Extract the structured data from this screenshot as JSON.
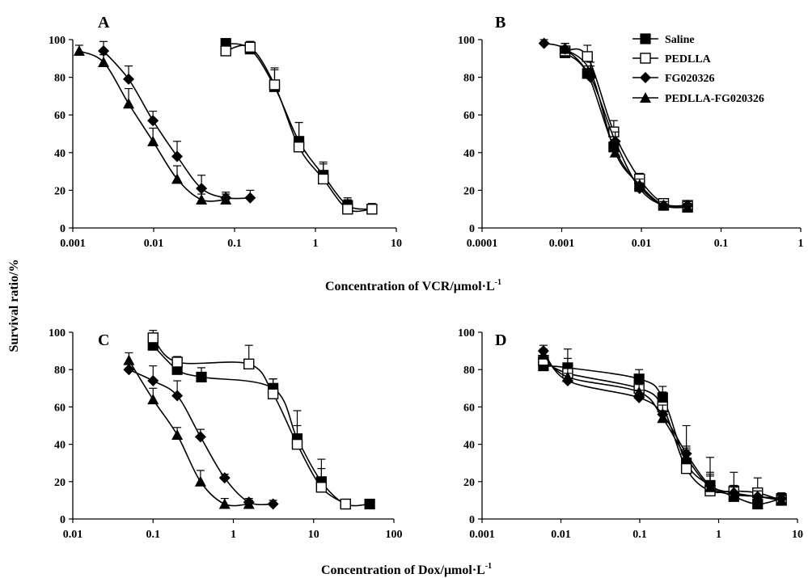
{
  "figure": {
    "ylabel": "Survival ratio/%",
    "xlabel_vcr": "Concentration of VCR/μmol·L",
    "xlabel_dox": "Concentration of Dox/μmol·L",
    "xlabel_sup": "-1"
  },
  "legend": {
    "items": [
      {
        "label": "Saline",
        "marker": "square-filled"
      },
      {
        "label": "PEDLLA",
        "marker": "square-open"
      },
      {
        "label": "FG020326",
        "marker": "diamond-filled"
      },
      {
        "label": "PEDLLA-FG020326",
        "marker": "triangle-filled"
      }
    ]
  },
  "chart_data": [
    {
      "panel": "A",
      "type": "line",
      "xscale": "log",
      "xlim": [
        0.001,
        10
      ],
      "ylim": [
        0,
        100
      ],
      "xticks": [
        "0.001",
        "0.01",
        "0.1",
        "1",
        "10"
      ],
      "yticks": [
        "0",
        "20",
        "40",
        "60",
        "80",
        "100"
      ],
      "series": [
        {
          "name": "Saline",
          "marker": "square-filled",
          "x": [
            0.078,
            0.156,
            0.3125,
            0.625,
            1.25,
            2.5,
            5
          ],
          "y": [
            98,
            95,
            75,
            46,
            28,
            12,
            10
          ],
          "err": [
            0,
            4,
            10,
            10,
            7,
            4,
            3
          ]
        },
        {
          "name": "PEDLLA",
          "marker": "square-open",
          "x": [
            0.078,
            0.156,
            0.3125,
            0.625,
            1.25,
            2.5,
            5
          ],
          "y": [
            94,
            96,
            76,
            43,
            26,
            10,
            10
          ],
          "err": [
            0,
            3,
            8,
            13,
            8,
            5,
            2
          ]
        },
        {
          "name": "FG020326",
          "marker": "diamond-filled",
          "x": [
            0.0024,
            0.0049,
            0.0098,
            0.0195,
            0.039,
            0.078,
            0.156
          ],
          "y": [
            94,
            79,
            57,
            38,
            21,
            16,
            16
          ],
          "err": [
            5,
            7,
            5,
            8,
            7,
            3,
            4
          ]
        },
        {
          "name": "PEDLLA-FG020326",
          "marker": "triangle-filled",
          "x": [
            0.0012,
            0.0024,
            0.0049,
            0.0098,
            0.0195,
            0.039,
            0.078
          ],
          "y": [
            94,
            88,
            66,
            46,
            26,
            15,
            15
          ],
          "err": [
            3,
            4,
            8,
            7,
            7,
            3,
            3
          ]
        }
      ]
    },
    {
      "panel": "B",
      "type": "line",
      "xscale": "log",
      "xlim": [
        0.0001,
        1
      ],
      "ylim": [
        0,
        100
      ],
      "xticks": [
        "0.0001",
        "0.001",
        "0.01",
        "0.1",
        "1"
      ],
      "yticks": [
        "0",
        "20",
        "40",
        "60",
        "80",
        "100"
      ],
      "series": [
        {
          "name": "Saline",
          "marker": "square-filled",
          "x": [
            0.0011,
            0.0021,
            0.0045,
            0.0095,
            0.019,
            0.038
          ],
          "y": [
            93,
            82,
            43,
            22,
            12,
            11
          ],
          "err": [
            3,
            4,
            6,
            3,
            2,
            2
          ]
        },
        {
          "name": "PEDLLA",
          "marker": "square-open",
          "x": [
            0.0011,
            0.0021,
            0.0045,
            0.0095,
            0.019,
            0.038
          ],
          "y": [
            94,
            91,
            51,
            26,
            13,
            12
          ],
          "err": [
            4,
            6,
            6,
            3,
            2,
            2
          ]
        },
        {
          "name": "FG020326",
          "marker": "diamond-filled",
          "x": [
            0.0006,
            0.0011,
            0.0023,
            0.0047,
            0.0095,
            0.019,
            0.038
          ],
          "y": [
            98,
            95,
            80,
            46,
            21,
            12,
            12
          ],
          "err": [
            2,
            3,
            6,
            5,
            3,
            2,
            2
          ]
        },
        {
          "name": "PEDLLA-FG020326",
          "marker": "triangle-filled",
          "x": [
            0.0011,
            0.0023,
            0.0047,
            0.0095,
            0.019,
            0.038
          ],
          "y": [
            95,
            83,
            40,
            23,
            12,
            11
          ],
          "err": [
            3,
            5,
            5,
            3,
            2,
            2
          ]
        }
      ]
    },
    {
      "panel": "C",
      "type": "line",
      "xscale": "log",
      "xlim": [
        0.01,
        100
      ],
      "ylim": [
        0,
        100
      ],
      "xticks": [
        "0.01",
        "0.1",
        "1",
        "10",
        "100"
      ],
      "yticks": [
        "0",
        "20",
        "40",
        "60",
        "80",
        "100"
      ],
      "series": [
        {
          "name": "Saline",
          "marker": "square-filled",
          "x": [
            0.1,
            0.2,
            0.4,
            3.125,
            6.25,
            12.5,
            25,
            50
          ],
          "y": [
            93,
            80,
            76,
            70,
            43,
            20,
            8,
            8
          ],
          "err": [
            4,
            4,
            5,
            5,
            15,
            12,
            2,
            2
          ]
        },
        {
          "name": "PEDLLA",
          "marker": "square-open",
          "x": [
            0.1,
            0.2,
            1.5625,
            3.125,
            6.25,
            12.5,
            25
          ],
          "y": [
            97,
            84,
            83,
            67,
            40,
            17,
            8
          ],
          "err": [
            4,
            3,
            10,
            8,
            10,
            10,
            2
          ]
        },
        {
          "name": "FG020326",
          "marker": "diamond-filled",
          "x": [
            0.05,
            0.1,
            0.2,
            0.39,
            0.78,
            1.5625,
            3.125
          ],
          "y": [
            80,
            74,
            66,
            44,
            22,
            9,
            8
          ],
          "err": [
            3,
            8,
            8,
            4,
            2,
            2,
            2
          ]
        },
        {
          "name": "PEDLLA-FG020326",
          "marker": "triangle-filled",
          "x": [
            0.05,
            0.1,
            0.2,
            0.39,
            0.78,
            1.5625
          ],
          "y": [
            85,
            64,
            45,
            20,
            8,
            8
          ],
          "err": [
            4,
            6,
            4,
            6,
            3,
            2
          ]
        }
      ]
    },
    {
      "panel": "D",
      "type": "line",
      "xscale": "log",
      "xlim": [
        0.001,
        10
      ],
      "ylim": [
        0,
        100
      ],
      "xticks": [
        "0.001",
        "0.01",
        "0.1",
        "1",
        "10"
      ],
      "yticks": [
        "0",
        "20",
        "40",
        "60",
        "80",
        "100"
      ],
      "series": [
        {
          "name": "Saline",
          "marker": "square-filled",
          "x": [
            0.006,
            0.0122,
            0.098,
            0.195,
            0.39,
            0.78,
            1.56,
            3.125,
            6.25
          ],
          "y": [
            82,
            81,
            75,
            65,
            30,
            18,
            12,
            8,
            11
          ],
          "err": [
            3,
            10,
            5,
            6,
            8,
            15,
            5,
            4,
            3
          ]
        },
        {
          "name": "PEDLLA",
          "marker": "square-open",
          "x": [
            0.006,
            0.0122,
            0.098,
            0.195,
            0.39,
            0.78,
            1.56,
            3.125,
            6.25
          ],
          "y": [
            85,
            78,
            70,
            60,
            27,
            15,
            15,
            14,
            10
          ],
          "err": [
            4,
            8,
            5,
            8,
            10,
            10,
            10,
            8,
            4
          ]
        },
        {
          "name": "FG020326",
          "marker": "diamond-filled",
          "x": [
            0.006,
            0.0122,
            0.098,
            0.195,
            0.39,
            0.78,
            1.56,
            3.125,
            6.25
          ],
          "y": [
            90,
            74,
            65,
            56,
            35,
            18,
            14,
            12,
            11
          ],
          "err": [
            3,
            4,
            4,
            5,
            15,
            6,
            4,
            3,
            3
          ]
        },
        {
          "name": "PEDLLA-FG020326",
          "marker": "triangle-filled",
          "x": [
            0.006,
            0.0122,
            0.098,
            0.195,
            0.39,
            0.78,
            1.56,
            3.125,
            6.25
          ],
          "y": [
            88,
            76,
            68,
            54,
            33,
            17,
            13,
            12,
            10
          ],
          "err": [
            3,
            5,
            4,
            4,
            6,
            6,
            4,
            3,
            3
          ]
        }
      ]
    }
  ]
}
